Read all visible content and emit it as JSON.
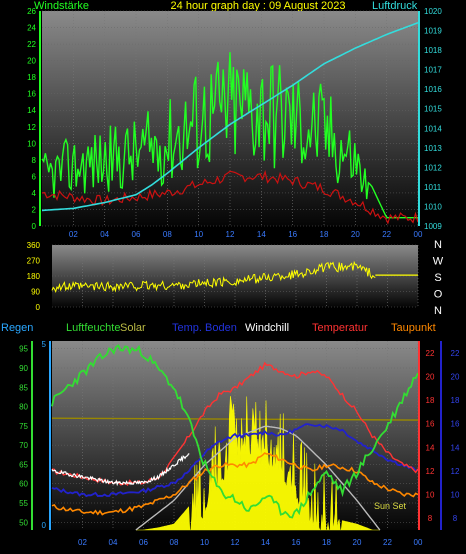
{
  "header": {
    "left_label": "Windstärke",
    "center_title": "24 hour graph day : 09 August 2023",
    "right_label": "Luftdruck"
  },
  "colors": {
    "wind": "#22ff22",
    "gust_red": "#cc1111",
    "pressure": "#33dddd",
    "direction": "#ffff00",
    "rain": "#2aa7ff",
    "humidity": "#33dd33",
    "solar": "#ffff00",
    "soil_temp": "#2222cc",
    "windchill": "#ffffff",
    "temperature": "#ff3333",
    "dewpoint": "#ff8800",
    "theory_solar": "#bbbbbb",
    "olive_line": "#998800"
  },
  "compass": [
    "N",
    "W",
    "S",
    "O",
    "N"
  ],
  "chart_data": [
    {
      "type": "line",
      "title": "24 hour graph day : 09 August 2023",
      "x_ticks": [
        "02",
        "04",
        "06",
        "08",
        "10",
        "12",
        "14",
        "16",
        "18",
        "20",
        "22",
        "00"
      ],
      "left_axis": {
        "label": "Windstärke",
        "ticks": [
          "0",
          "2",
          "4",
          "6",
          "8",
          "10",
          "12",
          "14",
          "16",
          "18",
          "20",
          "22",
          "24",
          "26"
        ],
        "ylim": [
          0,
          26
        ]
      },
      "right_axis": {
        "label": "Luftdruck",
        "ticks": [
          "1009",
          "1010",
          "1011",
          "1012",
          "1013",
          "1014",
          "1015",
          "1016",
          "1017",
          "1018",
          "1019",
          "1020"
        ],
        "ylim": [
          1009,
          1020
        ]
      },
      "series": [
        {
          "name": "Windstärke",
          "axis": "left",
          "hours": [
            0,
            2,
            4,
            6,
            8,
            10,
            12,
            14,
            16,
            18,
            20,
            21,
            22,
            23,
            24
          ],
          "values": [
            8,
            10,
            11,
            12,
            14,
            18,
            20,
            20,
            18,
            16,
            11,
            5,
            1,
            1,
            1
          ]
        },
        {
          "axis": "left",
          "hours": [
            0,
            2,
            4,
            6,
            8,
            10,
            12,
            14,
            16,
            18,
            20,
            22,
            24
          ],
          "values": [
            4,
            3.5,
            3,
            3.5,
            4,
            5,
            6,
            6,
            5.5,
            4.5,
            3,
            1,
            1
          ]
        },
        {
          "name": "Luftdruck",
          "axis": "right",
          "hours": [
            0,
            2,
            4,
            6,
            7,
            8,
            10,
            12,
            14,
            16,
            18,
            20,
            22,
            24
          ],
          "values": [
            1009.8,
            1009.9,
            1010.2,
            1010.6,
            1011.1,
            1011.7,
            1013.0,
            1014.2,
            1015.2,
            1016.2,
            1017.3,
            1018.1,
            1018.8,
            1019.4
          ]
        }
      ]
    },
    {
      "type": "scatter",
      "x_ticks": [
        "02",
        "04",
        "06",
        "08",
        "10",
        "12",
        "14",
        "16",
        "18",
        "20",
        "22",
        "00"
      ],
      "left_axis": {
        "ticks": [
          "0",
          "90",
          "180",
          "270",
          "360"
        ],
        "ylim": [
          0,
          360
        ]
      },
      "right_axis": {
        "ticks": [
          "N",
          "W",
          "S",
          "O",
          "N"
        ]
      },
      "series": [
        {
          "axis": "left",
          "hours": [
            0,
            4,
            8,
            12,
            16,
            18,
            20,
            21,
            22,
            24
          ],
          "values": [
            115,
            120,
            125,
            150,
            190,
            230,
            235,
            190,
            185,
            185
          ]
        }
      ]
    },
    {
      "type": "line",
      "legend": [
        "Regen",
        "Luftfeuchte",
        "Solar",
        "Temp. Boden",
        "Windchill",
        "Temperatur",
        "Taupunkt"
      ],
      "x_ticks": [
        "02",
        "04",
        "06",
        "08",
        "10",
        "12",
        "14",
        "16",
        "18",
        "20",
        "22",
        "00"
      ],
      "annotation": "Sun Set",
      "axes": {
        "rain_ticks": [
          "0",
          "5"
        ],
        "humidity_ticks": [
          "50",
          "55",
          "60",
          "65",
          "70",
          "75",
          "80",
          "85",
          "90",
          "95"
        ],
        "humidity_ylim": [
          48,
          97
        ],
        "temperature_ticks": [
          "8",
          "10",
          "12",
          "14",
          "16",
          "18",
          "20",
          "22"
        ],
        "temperature_ylim": [
          7,
          23
        ],
        "soil_ticks": [
          "8",
          "10",
          "12",
          "14",
          "16",
          "18",
          "20",
          "22"
        ]
      },
      "series": [
        {
          "name": "Luftfeuchte",
          "axis": "humidity",
          "hours": [
            0,
            1,
            3,
            4,
            5,
            6,
            8,
            9,
            10,
            11,
            12,
            13,
            14,
            15,
            16,
            17,
            18,
            19,
            20,
            22,
            23,
            24
          ],
          "values": [
            81,
            85,
            92,
            95,
            95,
            94,
            85,
            76,
            65,
            58,
            56,
            53,
            57,
            53,
            52,
            58,
            63,
            58,
            63,
            75,
            82,
            89
          ]
        },
        {
          "name": "Temperatur",
          "axis": "temperature",
          "hours": [
            0,
            2,
            4,
            6,
            7,
            8,
            9,
            10,
            11,
            12,
            13,
            14,
            15,
            16,
            17,
            18,
            19,
            20,
            21,
            22,
            23,
            24
          ],
          "values": [
            12,
            11.5,
            11,
            11,
            11.5,
            13,
            15,
            17,
            18.5,
            19,
            20,
            21,
            20.5,
            20,
            20.5,
            20,
            18.5,
            17,
            15,
            13.5,
            12.5,
            12
          ]
        },
        {
          "name": "Windchill",
          "axis": "temperature",
          "hours": [
            0,
            2,
            4,
            6,
            7,
            8,
            9
          ],
          "values": [
            12,
            11.5,
            11,
            11,
            11.5,
            12.5,
            13.5
          ]
        },
        {
          "name": "Temp. Boden",
          "axis": "temperature",
          "hours": [
            0,
            2,
            4,
            6,
            8,
            9,
            10,
            11,
            12,
            13,
            14,
            15,
            16,
            17,
            18,
            19,
            20,
            21,
            22,
            23,
            24
          ],
          "values": [
            10.5,
            10,
            10,
            10.3,
            11,
            12,
            13.5,
            14.5,
            15,
            15,
            15.3,
            15,
            15.5,
            16,
            15.8,
            15.5,
            14.5,
            13.8,
            13,
            12.5,
            12
          ]
        },
        {
          "name": "Taupunkt",
          "axis": "temperature",
          "hours": [
            0,
            2,
            4,
            6,
            8,
            9,
            10,
            11,
            12,
            13,
            14,
            15,
            16,
            17,
            18,
            19,
            20,
            21,
            22,
            23,
            24
          ],
          "values": [
            9,
            8.5,
            8.5,
            9,
            10,
            11,
            12,
            12.5,
            12.5,
            12.5,
            13.5,
            13,
            12.5,
            12,
            12.5,
            12.3,
            12,
            11,
            10.5,
            10,
            10
          ]
        },
        {
          "name": "Solar",
          "axis": "temperature",
          "hours": [
            6,
            7,
            8,
            9,
            10,
            11,
            12,
            13,
            14,
            15,
            16,
            17,
            18,
            19,
            20,
            21
          ],
          "values": [
            7,
            7.2,
            7.5,
            9,
            11,
            13,
            15,
            16,
            15,
            14,
            12,
            9,
            8,
            7.8,
            7.5,
            7
          ]
        },
        {
          "axis": "temperature",
          "hours": [
            5.5,
            8,
            10,
            12,
            14,
            15,
            16,
            18,
            20,
            21.5
          ],
          "values": [
            7,
            9.5,
            12.5,
            14.8,
            15.8,
            15.6,
            15,
            12.5,
            9.5,
            7
          ]
        },
        {
          "axis": "humidity",
          "hours": [
            0,
            24
          ],
          "values": [
            77,
            76.5
          ]
        }
      ]
    }
  ]
}
